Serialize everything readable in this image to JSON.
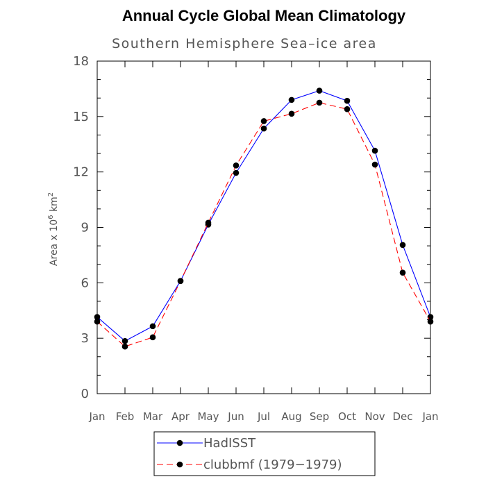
{
  "chart_data": {
    "type": "line",
    "title": "Annual Cycle Global Mean Climatology",
    "subtitle": "Southern Hemisphere Sea–ice area",
    "ylabel_prefix": "Area x 10",
    "ylabel_exp1": "6",
    "ylabel_mid": " km",
    "ylabel_exp2": "2",
    "categories": [
      "Jan",
      "Feb",
      "Mar",
      "Apr",
      "May",
      "Jun",
      "Jul",
      "Aug",
      "Sep",
      "Oct",
      "Nov",
      "Dec",
      "Jan"
    ],
    "ylim": [
      0,
      18
    ],
    "yticks": [
      0,
      3,
      6,
      9,
      12,
      15,
      18
    ],
    "series": [
      {
        "name": "HadISST",
        "color": "#0000ff",
        "dash": "solid",
        "values": [
          4.15,
          2.85,
          3.65,
          6.1,
          9.15,
          11.95,
          14.35,
          15.9,
          16.4,
          15.85,
          13.15,
          8.05,
          4.15
        ]
      },
      {
        "name": "clubbmf (1979−1979)",
        "color": "#ff0000",
        "dash": "dashed",
        "values": [
          3.9,
          2.55,
          3.05,
          6.1,
          9.25,
          12.35,
          14.75,
          15.15,
          15.75,
          15.4,
          12.4,
          6.55,
          3.9
        ]
      }
    ]
  }
}
